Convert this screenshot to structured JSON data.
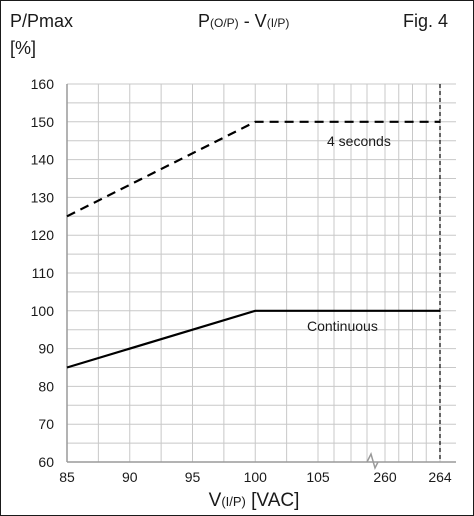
{
  "header": {
    "ylabel": "P/Pmax",
    "ylabel_unit": "[%]",
    "title_p": "P",
    "title_p_sub": "(O/P)",
    "title_dash": " - V",
    "title_v_sub": "(I/P)",
    "fig_label": "Fig. 4"
  },
  "xaxis": {
    "label_v": "V",
    "label_sub": "(I/P)",
    "label_unit": " [VAC]"
  },
  "chart_data": {
    "type": "line",
    "title": "P(O/P) - V(I/P)",
    "xlabel": "V(I/P) [VAC]",
    "ylabel": "P/Pmax [%]",
    "ylim": [
      60,
      160
    ],
    "y_ticks": [
      60,
      70,
      80,
      90,
      100,
      110,
      120,
      130,
      140,
      150,
      160
    ],
    "x_tick_labels": [
      "85",
      "90",
      "95",
      "100",
      "105",
      "260",
      "264"
    ],
    "x_axis_break": "between 105 and 260",
    "grid": true,
    "series": [
      {
        "name": "4 seconds",
        "style": "dashed",
        "color": "#000000",
        "x": [
          85,
          100,
          264
        ],
        "y": [
          125,
          150,
          150
        ]
      },
      {
        "name": "Continuous",
        "style": "solid",
        "color": "#000000",
        "x": [
          85,
          100,
          264
        ],
        "y": [
          85,
          100,
          100
        ]
      }
    ],
    "reference_lines": [
      {
        "x": 264,
        "style": "dashed",
        "color": "#000000"
      }
    ]
  },
  "colors": {
    "grid": "#c8c8c8",
    "axis": "#9a9a9a",
    "line": "#000000",
    "text": "#1a1a1a",
    "border": "#1a1a1a"
  }
}
